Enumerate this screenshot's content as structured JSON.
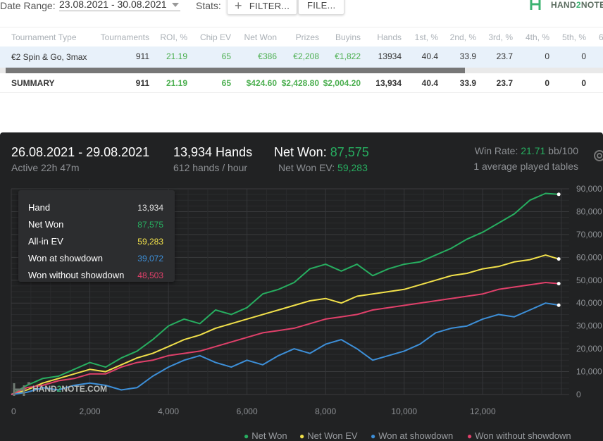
{
  "toolbar": {
    "date_range_label": "Date Range:",
    "date_range_value": "23.08.2021 - 30.08.2021",
    "stats_label": "Stats:",
    "filter_label": "FILTER...",
    "file_label": "FILE...",
    "logo_text_a": "HAND",
    "logo_text_b": "2",
    "logo_text_c": "NOTE.4"
  },
  "table": {
    "headers": [
      "Tournament Type",
      "Tournaments",
      "ROI, %",
      "Chip EV",
      "Net Won",
      "Prizes",
      "Buyins",
      "Hands",
      "1st, %",
      "2nd, %",
      "3rd, %",
      "4th, %",
      "5th, %",
      "6"
    ],
    "row": [
      "€2 Spin & Go, 3max",
      "911",
      "21.19",
      "65",
      "€386",
      "€2,208",
      "€1,822",
      "13934",
      "40.4",
      "33.9",
      "23.7",
      "0",
      "0",
      ""
    ],
    "summary": [
      "SUMMARY",
      "911",
      "21.19",
      "65",
      "$424.60",
      "$2,428.80",
      "$2,004.20",
      "13,934",
      "40.4",
      "33.9",
      "23.7",
      "0",
      "0",
      ""
    ]
  },
  "panel": {
    "date_range": "26.08.2021 - 29.08.2021",
    "active": "Active 22h 47m",
    "hands": "13,934 Hands",
    "hands_per_hour": "612 hands / hour",
    "net_won_label": "Net Won:",
    "net_won_value": "87,575",
    "net_won_ev_label": "Net Won  EV:",
    "net_won_ev_value": "59,283",
    "win_rate_label": "Win Rate:",
    "win_rate_value": "21.71",
    "win_rate_unit": "bb/100",
    "avg_tables": "1 average played tables",
    "watermark_a": "HAND",
    "watermark_b": "2",
    "watermark_c": "NOTE.COM"
  },
  "tooltip": {
    "rows": [
      {
        "label": "Hand",
        "value": "13,934",
        "color": "#e0e0e0"
      },
      {
        "label": "Net Won",
        "value": "87,575",
        "color": "#27ae60"
      },
      {
        "label": "All-in EV",
        "value": "59,283",
        "color": "#f1e04a"
      },
      {
        "label": "Won at showdown",
        "value": "39,072",
        "color": "#3d8fd8"
      },
      {
        "label": "Won without showdown",
        "value": "48,503",
        "color": "#e0406a"
      }
    ]
  },
  "legend": [
    {
      "label": "Net Won",
      "color": "#27ae60"
    },
    {
      "label": "Net Won  EV",
      "color": "#f1e04a"
    },
    {
      "label": "Won at showdown",
      "color": "#3d8fd8"
    },
    {
      "label": "Won without showdown",
      "color": "#e0406a"
    }
  ],
  "chart_data": {
    "type": "line",
    "x_ticks": [
      "0",
      "2,000",
      "4,000",
      "6,000",
      "8,000",
      "10,000",
      "12,000"
    ],
    "y_ticks": [
      "0",
      "10,000",
      "20,000",
      "30,000",
      "40,000",
      "50,000",
      "60,000",
      "70,000",
      "80,000",
      "90,000"
    ],
    "xlim": [
      0,
      14200
    ],
    "ylim": [
      0,
      90000
    ],
    "series": [
      {
        "name": "Net Won",
        "color": "#27ae60",
        "x": [
          0,
          400,
          800,
          1200,
          1600,
          2000,
          2400,
          2800,
          3200,
          3600,
          4000,
          4400,
          4800,
          5200,
          5600,
          6000,
          6400,
          6800,
          7200,
          7600,
          8000,
          8400,
          8800,
          9200,
          9600,
          10000,
          10400,
          10800,
          11200,
          11600,
          12000,
          12400,
          12800,
          13200,
          13600,
          13934
        ],
        "y": [
          0,
          4000,
          7000,
          8000,
          11000,
          14000,
          12000,
          16000,
          19000,
          24000,
          30000,
          33000,
          31000,
          37000,
          35000,
          38000,
          44000,
          46000,
          49000,
          55000,
          57000,
          54000,
          57000,
          52000,
          55000,
          57000,
          58000,
          61000,
          64000,
          68000,
          71000,
          75000,
          79000,
          85000,
          88000,
          87575
        ]
      },
      {
        "name": "Net Won  EV",
        "color": "#f1e04a",
        "x": [
          0,
          400,
          800,
          1200,
          1600,
          2000,
          2400,
          2800,
          3200,
          3600,
          4000,
          4400,
          4800,
          5200,
          5600,
          6000,
          6400,
          6800,
          7200,
          7600,
          8000,
          8400,
          8800,
          9200,
          9600,
          10000,
          10400,
          10800,
          11200,
          11600,
          12000,
          12400,
          12800,
          13200,
          13600,
          13934
        ],
        "y": [
          0,
          2000,
          5000,
          7000,
          9000,
          11000,
          10000,
          13000,
          16000,
          18000,
          21000,
          24000,
          26000,
          29000,
          31000,
          33000,
          35000,
          37000,
          39000,
          41000,
          42000,
          40000,
          43000,
          44000,
          45000,
          46000,
          48000,
          50000,
          52000,
          53000,
          55000,
          56000,
          58000,
          59000,
          61000,
          59283
        ]
      },
      {
        "name": "Won at showdown",
        "color": "#3d8fd8",
        "x": [
          0,
          400,
          800,
          1200,
          1600,
          2000,
          2400,
          2800,
          3200,
          3600,
          4000,
          4400,
          4800,
          5200,
          5600,
          6000,
          6400,
          6800,
          7200,
          7600,
          8000,
          8400,
          8800,
          9200,
          9600,
          10000,
          10400,
          10800,
          11200,
          11600,
          12000,
          12400,
          12800,
          13200,
          13600,
          13934
        ],
        "y": [
          0,
          1000,
          3000,
          2000,
          4000,
          5000,
          4000,
          2000,
          3000,
          8000,
          12000,
          15000,
          17000,
          14000,
          12000,
          15000,
          13000,
          17000,
          20000,
          18000,
          22000,
          24000,
          20000,
          15000,
          17000,
          19000,
          22000,
          27000,
          29000,
          30000,
          33000,
          35000,
          34000,
          37000,
          40000,
          39072
        ]
      },
      {
        "name": "Won without showdown",
        "color": "#e0406a",
        "x": [
          0,
          400,
          800,
          1200,
          1600,
          2000,
          2400,
          2800,
          3200,
          3600,
          4000,
          4400,
          4800,
          5200,
          5600,
          6000,
          6400,
          6800,
          7200,
          7600,
          8000,
          8400,
          8800,
          9200,
          9600,
          10000,
          10400,
          10800,
          11200,
          11600,
          12000,
          12400,
          12800,
          13200,
          13600,
          13934
        ],
        "y": [
          0,
          3000,
          4000,
          6000,
          7000,
          9000,
          9000,
          12000,
          14000,
          15000,
          17000,
          18000,
          19000,
          21000,
          23000,
          25000,
          27000,
          28000,
          29000,
          31000,
          33000,
          34000,
          35000,
          37000,
          38000,
          39000,
          40000,
          41000,
          42000,
          43000,
          44000,
          46000,
          47000,
          48000,
          49000,
          48503
        ]
      }
    ]
  }
}
